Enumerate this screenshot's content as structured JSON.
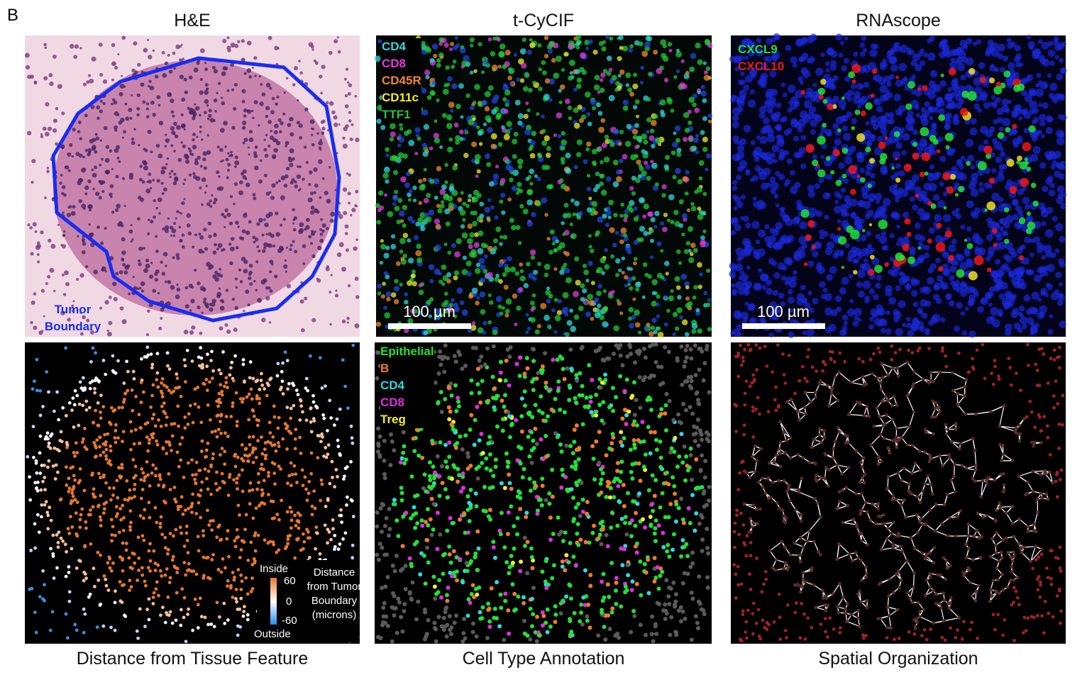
{
  "panel_label": "B",
  "columns": [
    {
      "title": "H&E",
      "caption": "Distance from Tissue Feature"
    },
    {
      "title": "t-CyCIF",
      "caption": "Cell Type Annotation"
    },
    {
      "title": "RNAscope",
      "caption": "Spatial Organization"
    }
  ],
  "he_annotation": "Tumor Boundary",
  "cycif_markers": [
    {
      "label": "CD4",
      "color": "#2fd8e0"
    },
    {
      "label": "CD8",
      "color": "#e23be0"
    },
    {
      "label": "CD45R",
      "color": "#f08a2c"
    },
    {
      "label": "CD11c",
      "color": "#f2ee2a"
    },
    {
      "label": "TTF1",
      "color": "#22c83a"
    }
  ],
  "rnascope_markers": [
    {
      "label": "CXCL9",
      "color": "#22e03a"
    },
    {
      "label": "CXCL10",
      "color": "#f01818"
    }
  ],
  "scale_bars": [
    "100 µm",
    "100 µm"
  ],
  "cell_types": [
    {
      "label": "Epithelial",
      "color": "#22e03a"
    },
    {
      "label": "B",
      "color": "#f07a2a"
    },
    {
      "label": "CD4",
      "color": "#2fd8e0"
    },
    {
      "label": "CD8",
      "color": "#e02ee0"
    },
    {
      "label": "Treg",
      "color": "#f2ee2a"
    }
  ],
  "distance_legend": {
    "top": "Inside",
    "bottom": "Outside",
    "ticks": [
      "60",
      "0",
      "-60"
    ],
    "title": "Distance from Tumor Boundary (microns)"
  }
}
